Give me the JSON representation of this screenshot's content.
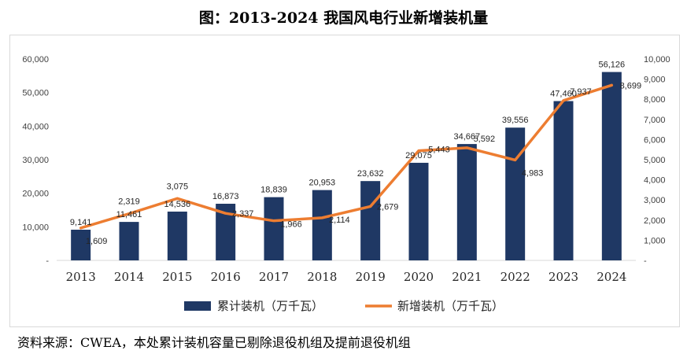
{
  "title": "图：2013-2024 我国风电行业新增装机量",
  "source": "资料来源：CWEA，本处累计装机容量已剔除退役机组及提前退役机组",
  "colors": {
    "bar": "#1f3864",
    "line": "#ed7d31"
  },
  "chart_data": {
    "type": "bar+line",
    "categories": [
      "2013",
      "2014",
      "2015",
      "2016",
      "2017",
      "2018",
      "2019",
      "2020",
      "2021",
      "2022",
      "2023",
      "2024"
    ],
    "series": [
      {
        "name": "累计装机（万千瓦）",
        "type": "bar",
        "axis": "left",
        "values": [
          9141,
          11461,
          14536,
          16873,
          18839,
          20953,
          23632,
          29075,
          34667,
          39556,
          47460,
          56126
        ],
        "labels": [
          "9,141",
          "11,461",
          "14,536",
          "16,873",
          "18,839",
          "20,953",
          "23,632",
          "29,075",
          "34,667",
          "39,556",
          "47,460",
          "56,126"
        ]
      },
      {
        "name": "新增装机（万千瓦）",
        "type": "line",
        "axis": "right",
        "values": [
          1609,
          2319,
          3075,
          2337,
          1966,
          2114,
          2679,
          5443,
          5592,
          4983,
          7937,
          8699
        ],
        "labels": [
          "1,609",
          "2,319",
          "3,075",
          "2,337",
          "1,966",
          "2,114",
          "2,679",
          "5,443",
          "5,592",
          "4,983",
          "7,937",
          "8,699"
        ]
      }
    ],
    "left_axis": {
      "min": 0,
      "max": 60000,
      "ticks": [
        "-",
        "10,000",
        "20,000",
        "30,000",
        "40,000",
        "50,000",
        "60,000"
      ]
    },
    "right_axis": {
      "min": 0,
      "max": 10000,
      "ticks": [
        "-",
        "1,000",
        "2,000",
        "3,000",
        "4,000",
        "5,000",
        "6,000",
        "7,000",
        "8,000",
        "9,000",
        "10,000"
      ]
    },
    "legend_position": "bottom",
    "grid": false
  }
}
